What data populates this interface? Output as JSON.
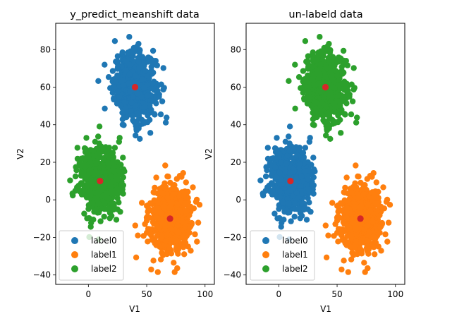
{
  "chart_data": [
    {
      "type": "scatter",
      "title": "y_predict_meanshift data",
      "xlabel": "V1",
      "ylabel": "V2",
      "xlim": [
        -28,
        108
      ],
      "ylim": [
        -45,
        94
      ],
      "xticks": [
        0,
        50,
        100
      ],
      "yticks": [
        -40,
        -20,
        0,
        20,
        40,
        60,
        80
      ],
      "legend_position": "lower-left",
      "series": [
        {
          "name": "label0",
          "color": "#1f77b4",
          "center": [
            40,
            60
          ],
          "spread": [
            9,
            9
          ]
        },
        {
          "name": "label1",
          "color": "#ff7f0e",
          "center": [
            70,
            -10
          ],
          "spread": [
            9,
            9
          ]
        },
        {
          "name": "label2",
          "color": "#2ca02c",
          "center": [
            10,
            10
          ],
          "spread": [
            9,
            9
          ]
        }
      ],
      "centers": {
        "color": "#d62728",
        "points": [
          [
            40,
            60
          ],
          [
            70,
            -10
          ],
          [
            10,
            10
          ]
        ]
      }
    },
    {
      "type": "scatter",
      "title": "un-labeld data",
      "xlabel": "V1",
      "ylabel": "V2",
      "xlim": [
        -28,
        108
      ],
      "ylim": [
        -45,
        94
      ],
      "xticks": [
        0,
        50,
        100
      ],
      "yticks": [
        -40,
        -20,
        0,
        20,
        40,
        60,
        80
      ],
      "legend_position": "lower-left",
      "series": [
        {
          "name": "label0",
          "color": "#1f77b4",
          "center": [
            10,
            10
          ],
          "spread": [
            9,
            9
          ]
        },
        {
          "name": "label1",
          "color": "#ff7f0e",
          "center": [
            70,
            -10
          ],
          "spread": [
            9,
            9
          ]
        },
        {
          "name": "label2",
          "color": "#2ca02c",
          "center": [
            40,
            60
          ],
          "spread": [
            9,
            9
          ]
        }
      ],
      "centers": {
        "color": "#d62728",
        "points": [
          [
            40,
            60
          ],
          [
            70,
            -10
          ],
          [
            10,
            10
          ]
        ]
      }
    }
  ]
}
